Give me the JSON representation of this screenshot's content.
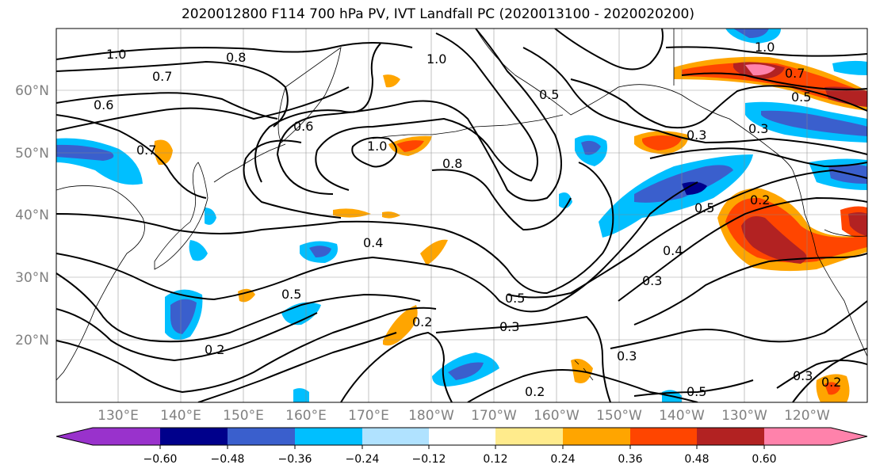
{
  "title": "2020012800 F114 700 hPa PV, IVT Landfall PC (2020013100 - 2020020200)",
  "map": {
    "lat_ticks": [
      {
        "label": "60°N"
      },
      {
        "label": "50°N"
      },
      {
        "label": "40°N"
      },
      {
        "label": "30°N"
      },
      {
        "label": "20°N"
      }
    ],
    "lon_ticks": [
      {
        "label": "130°E"
      },
      {
        "label": "140°E"
      },
      {
        "label": "150°E"
      },
      {
        "label": "160°E"
      },
      {
        "label": "170°E"
      },
      {
        "label": "180°W"
      },
      {
        "label": "170°W"
      },
      {
        "label": "160°W"
      },
      {
        "label": "150°W"
      },
      {
        "label": "140°W"
      },
      {
        "label": "130°W"
      },
      {
        "label": "120°W"
      }
    ],
    "contour_labels": [
      {
        "text": "1.0"
      },
      {
        "text": "0.8"
      },
      {
        "text": "0.7"
      },
      {
        "text": "0.6"
      },
      {
        "text": "0.6"
      },
      {
        "text": "0.7"
      },
      {
        "text": "0.5"
      },
      {
        "text": "1.0"
      },
      {
        "text": "0.8"
      },
      {
        "text": "0.4"
      },
      {
        "text": "0.5"
      },
      {
        "text": "0.2"
      },
      {
        "text": "0.5"
      },
      {
        "text": "0.2"
      },
      {
        "text": "0.3"
      },
      {
        "text": "0.2"
      },
      {
        "text": "0.3"
      },
      {
        "text": "0.5"
      },
      {
        "text": "0.3"
      },
      {
        "text": "0.5"
      },
      {
        "text": "0.4"
      },
      {
        "text": "0.3"
      },
      {
        "text": "0.2"
      },
      {
        "text": "1.0"
      },
      {
        "text": "0.7"
      },
      {
        "text": "0.5"
      },
      {
        "text": "0.3"
      },
      {
        "text": "0.3"
      },
      {
        "text": "0.2"
      },
      {
        "text": "1.0"
      }
    ]
  },
  "colorbar": {
    "colors": [
      "#9932cc",
      "#00008b",
      "#3a5fcd",
      "#00bfff",
      "#b0e2ff",
      "#ffffff",
      "#ffeb8c",
      "#ffa500",
      "#ff4500",
      "#b22222",
      "#ff82ab"
    ],
    "tick_labels": [
      "−0.60",
      "−0.48",
      "−0.36",
      "−0.24",
      "−0.12",
      "0.12",
      "0.24",
      "0.36",
      "0.48",
      "0.60"
    ]
  }
}
